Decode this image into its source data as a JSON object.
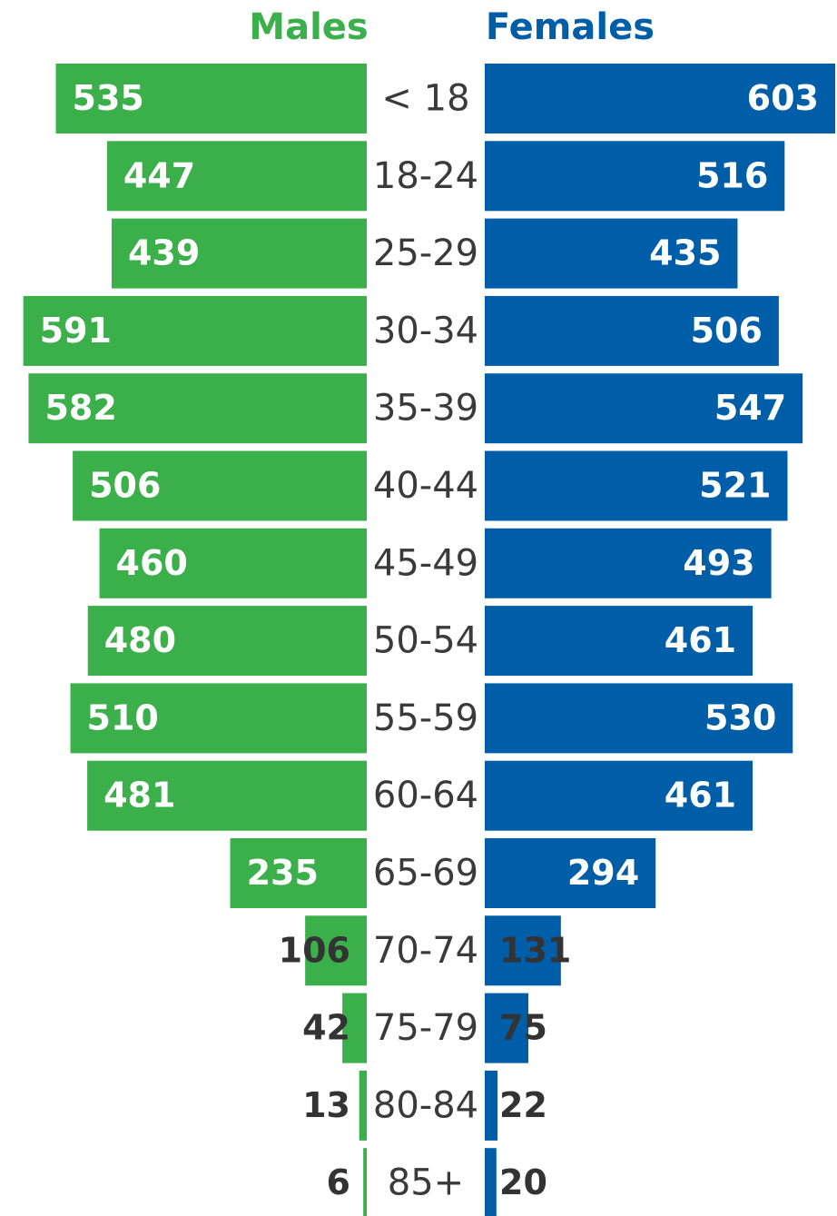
{
  "chart_data": {
    "type": "population-pyramid",
    "categories": [
      "< 18",
      "18-24",
      "25-29",
      "30-34",
      "35-39",
      "40-44",
      "45-49",
      "50-54",
      "55-59",
      "60-64",
      "65-69",
      "70-74",
      "75-79",
      "80-84",
      "85+"
    ],
    "series": [
      {
        "name": "Males",
        "color": "#3aaf4a",
        "values": [
          535,
          447,
          439,
          591,
          582,
          506,
          460,
          480,
          510,
          481,
          235,
          106,
          42,
          13,
          6
        ]
      },
      {
        "name": "Females",
        "color": "#005ea8",
        "values": [
          603,
          516,
          435,
          506,
          547,
          521,
          493,
          461,
          530,
          461,
          294,
          131,
          75,
          22,
          20
        ]
      }
    ]
  }
}
